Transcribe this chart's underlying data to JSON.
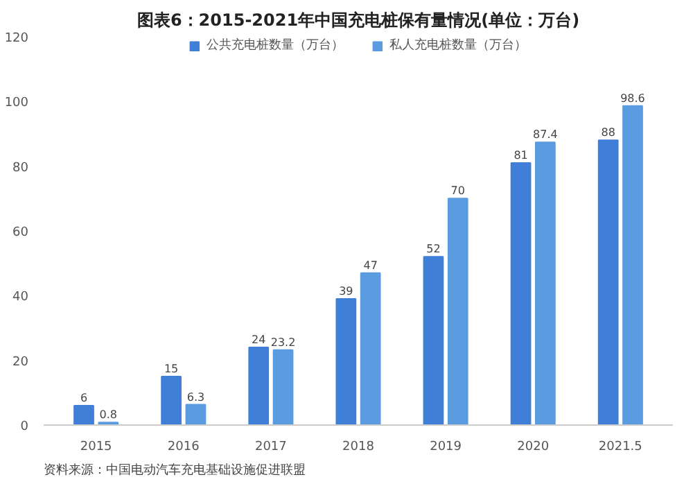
{
  "chart_data": {
    "type": "bar",
    "title": "图表6：2015-2021年中国充电桩保有量情况(单位：万台)",
    "categories": [
      "2015",
      "2016",
      "2017",
      "2018",
      "2019",
      "2020",
      "2021.5"
    ],
    "series": [
      {
        "name": "公共充电桩数量（万台）",
        "color": "#3f7fd8",
        "values": [
          6,
          15,
          24,
          39,
          52,
          81,
          88
        ]
      },
      {
        "name": "私人充电桩数量（万台）",
        "color": "#5b9be0",
        "values": [
          0.8,
          6.3,
          23.2,
          47,
          70,
          87.4,
          98.6
        ]
      }
    ],
    "ylim": [
      0,
      120
    ],
    "yticks": [
      0,
      20,
      40,
      60,
      80,
      100,
      120
    ],
    "grid": false,
    "legend": "top",
    "data_labels": true,
    "annotations": [
      "资料来源：中国电动汽车充电基础设施促进联盟"
    ]
  }
}
